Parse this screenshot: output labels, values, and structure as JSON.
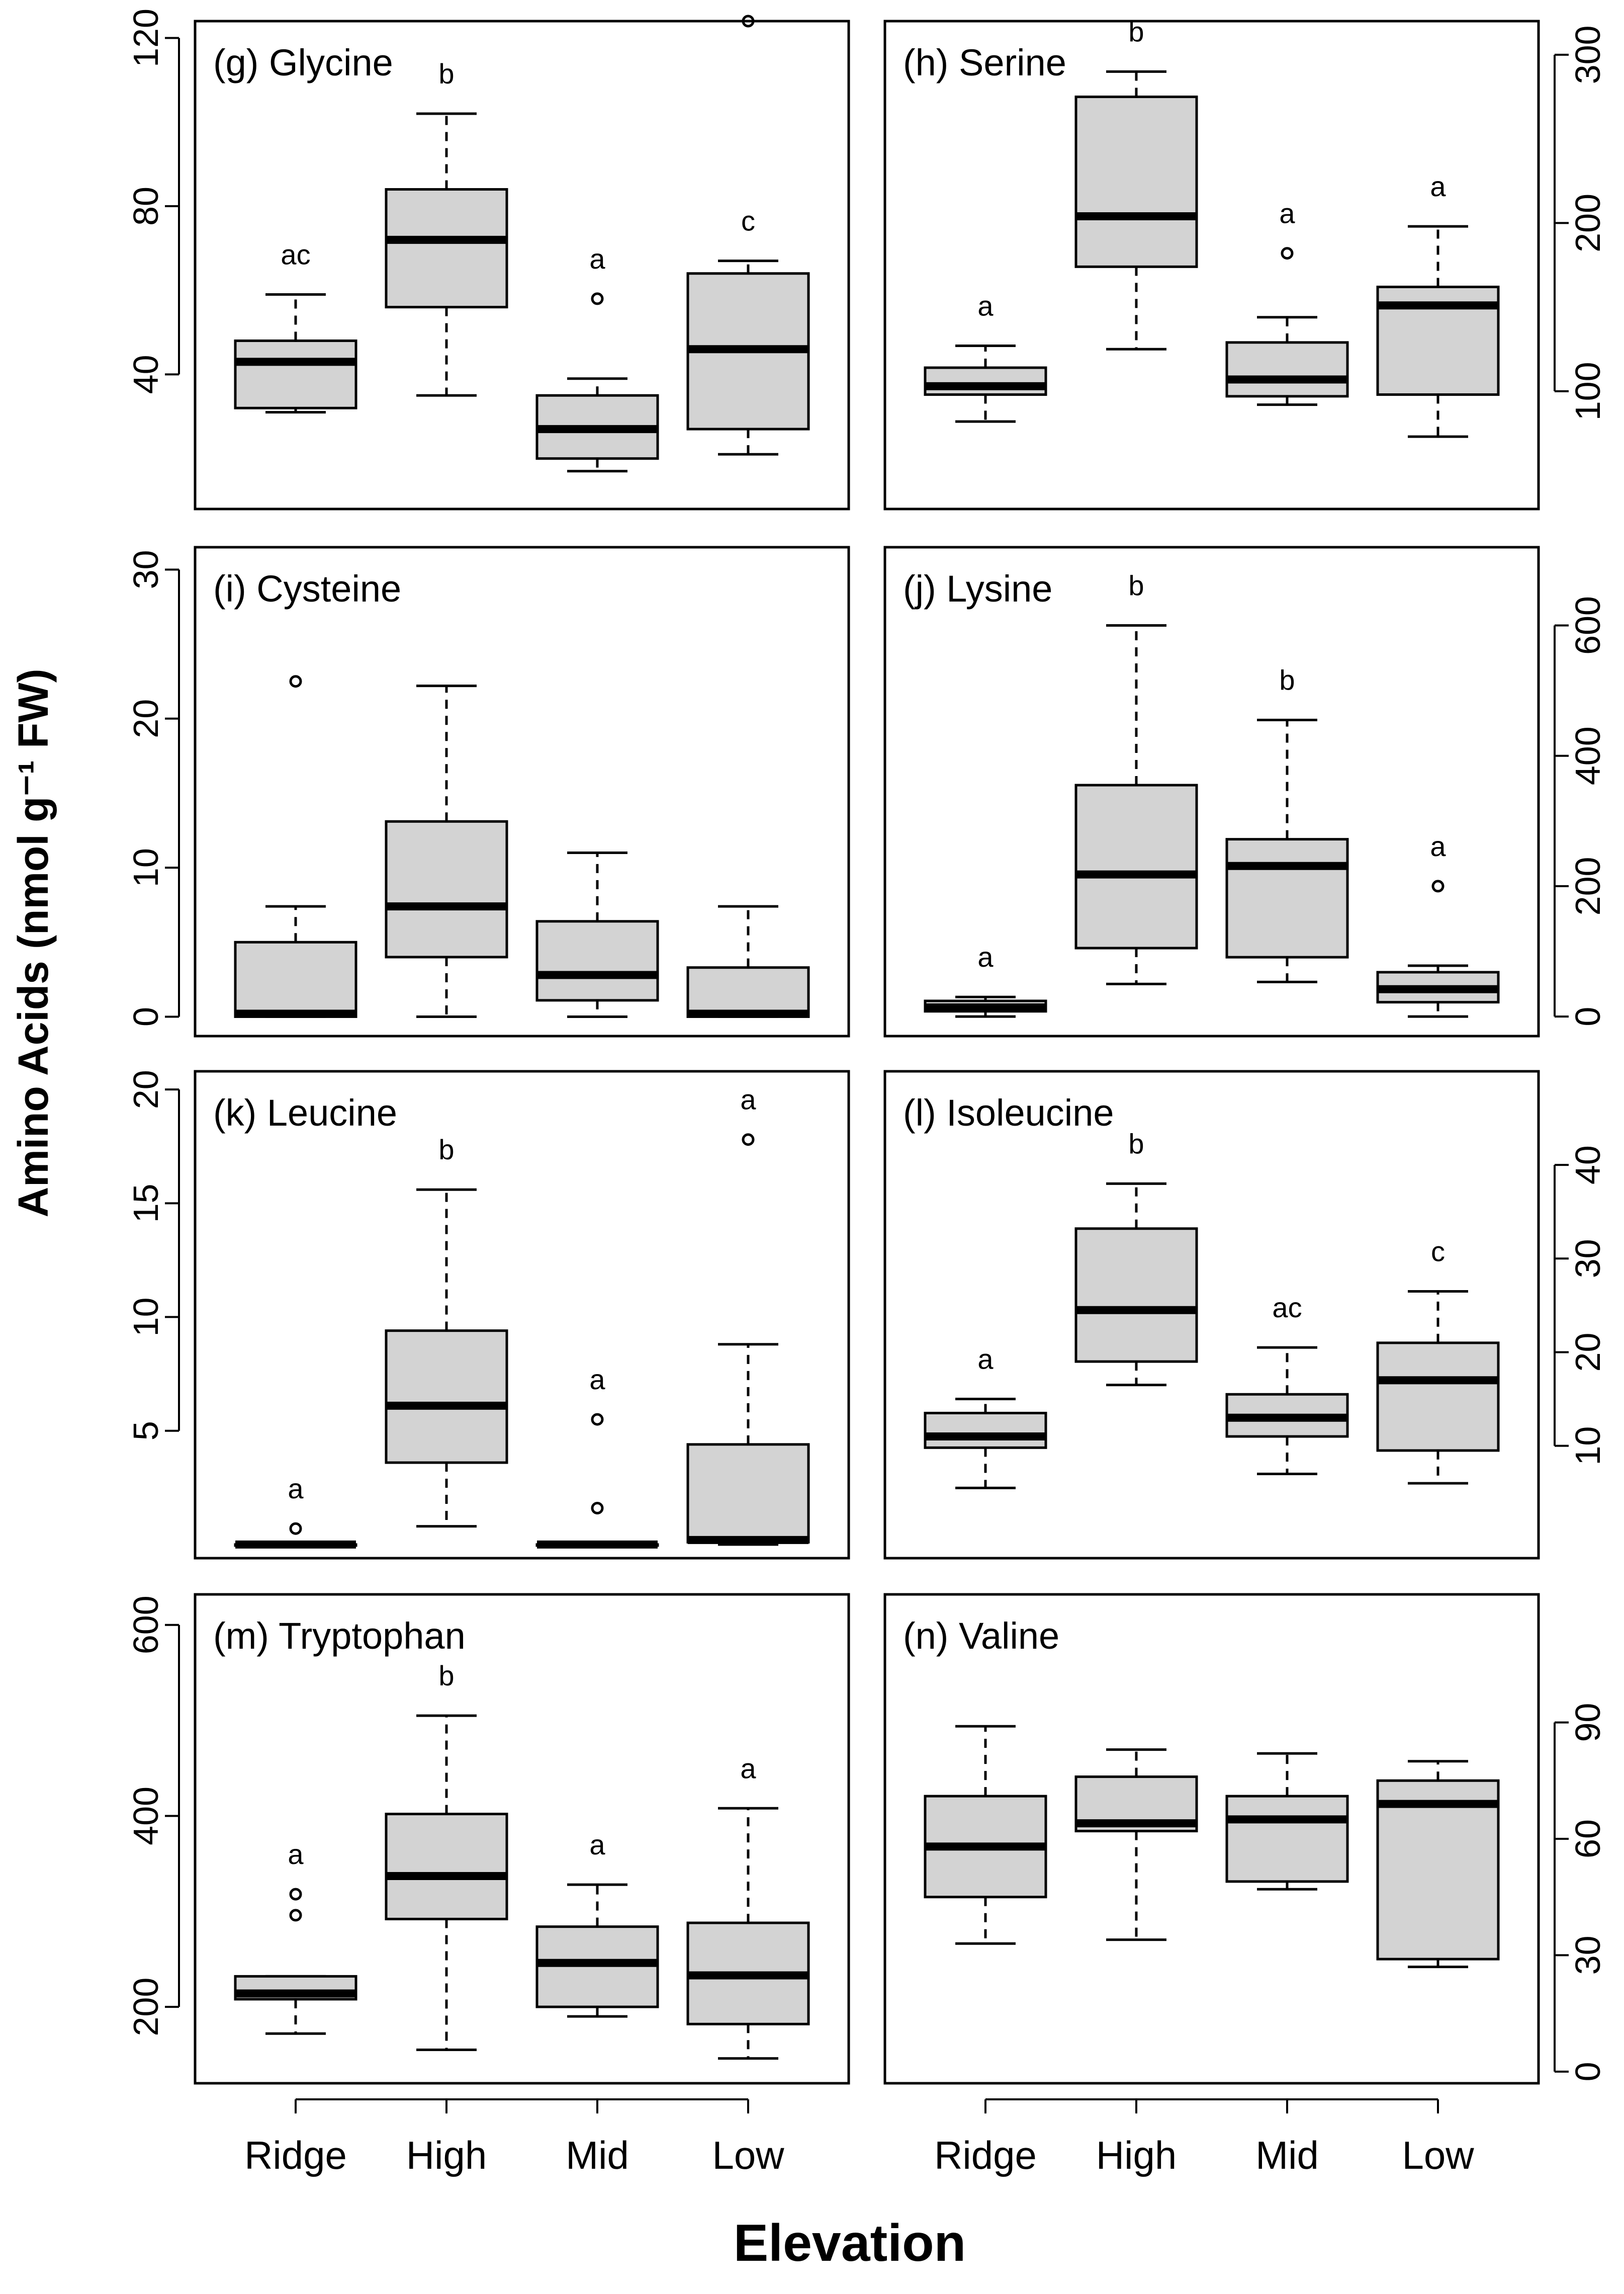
{
  "figure": {
    "ylabel": "Amino Acids (nmol g⁻¹ FW)",
    "xlabel": "Elevation"
  },
  "colors": {
    "box_fill": "#d3d3d3",
    "stroke": "#000000",
    "background": "#ffffff"
  },
  "chart_data": [
    {
      "type": "boxplot",
      "title": "(g) Glycine",
      "categories": [
        "Ridge",
        "High",
        "Mid",
        "Low"
      ],
      "ylim": [
        8,
        124
      ],
      "yticks": [
        40,
        80,
        120
      ],
      "yaxis_side": "left",
      "boxes": [
        {
          "whisker_low": 31,
          "q1": 32,
          "median": 43,
          "q3": 48,
          "whisker_high": 59,
          "outliers": [],
          "letter": "ac"
        },
        {
          "whisker_low": 35,
          "q1": 56,
          "median": 72,
          "q3": 84,
          "whisker_high": 102,
          "outliers": [],
          "letter": "b"
        },
        {
          "whisker_low": 17,
          "q1": 20,
          "median": 27,
          "q3": 35,
          "whisker_high": 39,
          "outliers": [
            58
          ],
          "letter": "a"
        },
        {
          "whisker_low": 21,
          "q1": 27,
          "median": 46,
          "q3": 64,
          "whisker_high": 67,
          "outliers": [
            124
          ],
          "letter": "c"
        }
      ]
    },
    {
      "type": "boxplot",
      "title": "(h) Serine",
      "categories": [
        "Ridge",
        "High",
        "Mid",
        "Low"
      ],
      "ylim": [
        30,
        320
      ],
      "yticks": [
        100,
        200,
        300
      ],
      "yaxis_side": "right",
      "boxes": [
        {
          "whisker_low": 82,
          "q1": 98,
          "median": 103,
          "q3": 114,
          "whisker_high": 127,
          "outliers": [],
          "letter": "a"
        },
        {
          "whisker_low": 125,
          "q1": 174,
          "median": 204,
          "q3": 275,
          "whisker_high": 290,
          "outliers": [],
          "letter": "b"
        },
        {
          "whisker_low": 92,
          "q1": 97,
          "median": 107,
          "q3": 129,
          "whisker_high": 144,
          "outliers": [
            182
          ],
          "letter": "a"
        },
        {
          "whisker_low": 73,
          "q1": 98,
          "median": 151,
          "q3": 162,
          "whisker_high": 198,
          "outliers": [],
          "letter": "a"
        }
      ]
    },
    {
      "type": "boxplot",
      "title": "(i) Cysteine",
      "categories": [
        "Ridge",
        "High",
        "Mid",
        "Low"
      ],
      "ylim": [
        -1.3,
        31.5
      ],
      "yticks": [
        0,
        10,
        20,
        30
      ],
      "yaxis_side": "left",
      "boxes": [
        {
          "whisker_low": 0,
          "q1": 0,
          "median": 0.2,
          "q3": 5,
          "whisker_high": 7.4,
          "outliers": [
            22.5
          ],
          "letter": ""
        },
        {
          "whisker_low": 0,
          "q1": 4,
          "median": 7.4,
          "q3": 13.1,
          "whisker_high": 22.2,
          "outliers": [],
          "letter": ""
        },
        {
          "whisker_low": 0,
          "q1": 1.1,
          "median": 2.8,
          "q3": 6.4,
          "whisker_high": 11,
          "outliers": [],
          "letter": ""
        },
        {
          "whisker_low": 0,
          "q1": 0,
          "median": 0.2,
          "q3": 3.3,
          "whisker_high": 7.4,
          "outliers": [],
          "letter": ""
        }
      ]
    },
    {
      "type": "boxplot",
      "title": "(j) Lysine",
      "categories": [
        "Ridge",
        "High",
        "Mid",
        "Low"
      ],
      "ylim": [
        -30,
        720
      ],
      "yticks": [
        0,
        200,
        400,
        600
      ],
      "yaxis_side": "right",
      "boxes": [
        {
          "whisker_low": 0,
          "q1": 8,
          "median": 14,
          "q3": 24,
          "whisker_high": 30,
          "outliers": [],
          "letter": "a"
        },
        {
          "whisker_low": 50,
          "q1": 105,
          "median": 218,
          "q3": 355,
          "whisker_high": 600,
          "outliers": [],
          "letter": "b"
        },
        {
          "whisker_low": 53,
          "q1": 91,
          "median": 231,
          "q3": 272,
          "whisker_high": 455,
          "outliers": [],
          "letter": "b"
        },
        {
          "whisker_low": 0,
          "q1": 22,
          "median": 42,
          "q3": 68,
          "whisker_high": 78,
          "outliers": [
            200
          ],
          "letter": "a"
        }
      ]
    },
    {
      "type": "boxplot",
      "title": "(k) Leucine",
      "categories": [
        "Ridge",
        "High",
        "Mid",
        "Low"
      ],
      "ylim": [
        -0.6,
        20.8
      ],
      "yticks": [
        5,
        10,
        15,
        20
      ],
      "yaxis_side": "left",
      "boxes": [
        {
          "whisker_low": 0,
          "q1": 0,
          "median": 0,
          "q3": 0,
          "whisker_high": 0,
          "outliers": [
            0.7
          ],
          "letter": "a"
        },
        {
          "whisker_low": 0.8,
          "q1": 3.6,
          "median": 6.1,
          "q3": 9.4,
          "whisker_high": 15.6,
          "outliers": [],
          "letter": "b"
        },
        {
          "whisker_low": 0,
          "q1": 0,
          "median": 0,
          "q3": 0,
          "whisker_high": 0,
          "outliers": [
            1.6,
            5.5
          ],
          "letter": "a"
        },
        {
          "whisker_low": 0,
          "q1": 0.1,
          "median": 0.2,
          "q3": 4.4,
          "whisker_high": 8.8,
          "outliers": [
            17.8
          ],
          "letter": "a"
        }
      ]
    },
    {
      "type": "boxplot",
      "title": "(l) Isoleucine",
      "categories": [
        "Ridge",
        "High",
        "Mid",
        "Low"
      ],
      "ylim": [
        -2,
        50
      ],
      "yticks": [
        10,
        20,
        30,
        40
      ],
      "yaxis_side": "right",
      "boxes": [
        {
          "whisker_low": 5.5,
          "q1": 9.8,
          "median": 11,
          "q3": 13.5,
          "whisker_high": 15,
          "outliers": [],
          "letter": "a"
        },
        {
          "whisker_low": 16.5,
          "q1": 19,
          "median": 24.5,
          "q3": 33.2,
          "whisker_high": 38,
          "outliers": [],
          "letter": "b"
        },
        {
          "whisker_low": 7,
          "q1": 11,
          "median": 13,
          "q3": 15.5,
          "whisker_high": 20.5,
          "outliers": [],
          "letter": "ac"
        },
        {
          "whisker_low": 6,
          "q1": 9.5,
          "median": 17,
          "q3": 21,
          "whisker_high": 26.5,
          "outliers": [],
          "letter": "c"
        }
      ]
    },
    {
      "type": "boxplot",
      "title": "(m) Tryptophan",
      "categories": [
        "Ridge",
        "High",
        "Mid",
        "Low"
      ],
      "ylim": [
        120,
        632
      ],
      "yticks": [
        200,
        400,
        600
      ],
      "yaxis_side": "left",
      "boxes": [
        {
          "whisker_low": 172,
          "q1": 208,
          "median": 214,
          "q3": 232,
          "whisker_high": 232,
          "outliers": [
            296,
            318
          ],
          "letter": "a"
        },
        {
          "whisker_low": 155,
          "q1": 292,
          "median": 337,
          "q3": 402,
          "whisker_high": 505,
          "outliers": [],
          "letter": "b"
        },
        {
          "whisker_low": 190,
          "q1": 200,
          "median": 246,
          "q3": 284,
          "whisker_high": 328,
          "outliers": [],
          "letter": "a"
        },
        {
          "whisker_low": 146,
          "q1": 182,
          "median": 233,
          "q3": 288,
          "whisker_high": 408,
          "outliers": [],
          "letter": "a"
        }
      ]
    },
    {
      "type": "boxplot",
      "title": "(n) Valine",
      "categories": [
        "Ridge",
        "High",
        "Mid",
        "Low"
      ],
      "ylim": [
        -3,
        123
      ],
      "yticks": [
        0,
        30,
        60,
        90
      ],
      "yaxis_side": "right",
      "boxes": [
        {
          "whisker_low": 33,
          "q1": 45,
          "median": 58,
          "q3": 71,
          "whisker_high": 89,
          "outliers": [],
          "letter": ""
        },
        {
          "whisker_low": 34,
          "q1": 62,
          "median": 64,
          "q3": 76,
          "whisker_high": 83,
          "outliers": [],
          "letter": ""
        },
        {
          "whisker_low": 47,
          "q1": 49,
          "median": 65,
          "q3": 71,
          "whisker_high": 82,
          "outliers": [],
          "letter": ""
        },
        {
          "whisker_low": 27,
          "q1": 29,
          "median": 69,
          "q3": 75,
          "whisker_high": 80,
          "outliers": [],
          "letter": ""
        }
      ]
    }
  ]
}
